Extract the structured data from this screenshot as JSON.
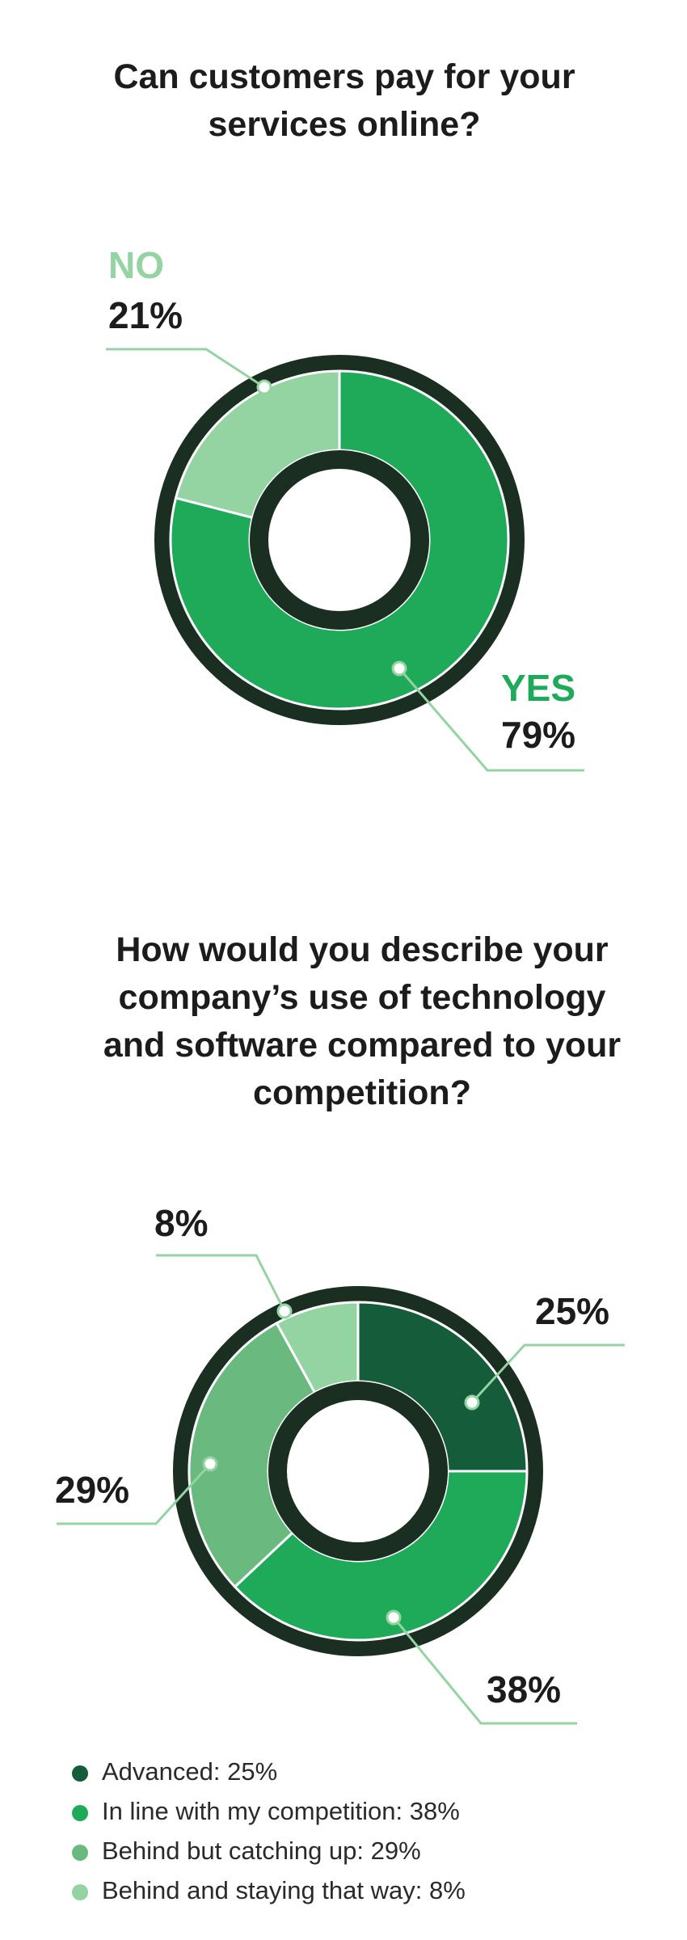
{
  "chart_data": [
    {
      "type": "pie",
      "title": "Can customers pay for your services online?",
      "categories": [
        "YES",
        "NO"
      ],
      "values": [
        79,
        21
      ],
      "value_labels": [
        "79%",
        "21%"
      ],
      "colors": [
        "#1faa59",
        "#94d3a2"
      ],
      "legend": false
    },
    {
      "type": "pie",
      "title": "How would you describe your company’s use of technology and software compared to your competition?",
      "categories": [
        "Advanced: 25%",
        "In line with my competition: 38%",
        "Behind but catching up: 29%",
        "Behind and staying that way: 8%"
      ],
      "values": [
        25,
        38,
        29,
        8
      ],
      "value_labels": [
        "25%",
        "38%",
        "29%",
        "8%"
      ],
      "colors": [
        "#155c3a",
        "#1faa59",
        "#6aba80",
        "#94d3a2"
      ],
      "legend": true
    }
  ]
}
